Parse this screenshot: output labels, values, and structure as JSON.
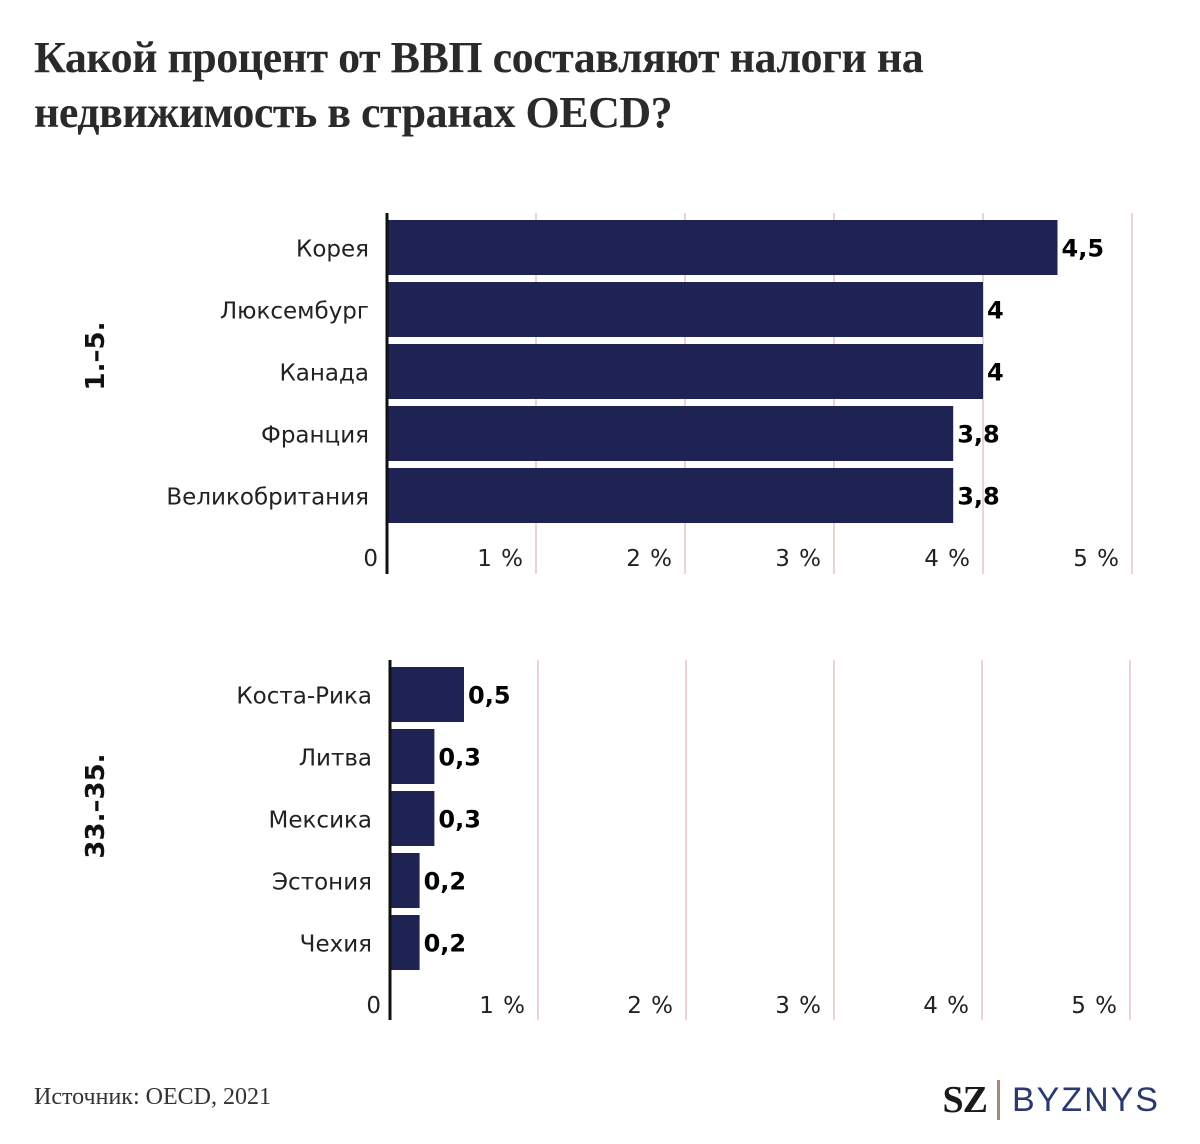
{
  "title": "Какой процент от ВВП составляют налоги на недвижимость в странах OECD?",
  "source": "Источник: OECD, 2021",
  "logo": {
    "sz": "SZ",
    "byznys": "BYZNYS"
  },
  "colors": {
    "bar": "#1e2353",
    "grid": "#e8c4c4",
    "axis": "#111111"
  },
  "chart_data": [
    {
      "type": "bar",
      "group_label": "1.–5.",
      "categories": [
        "Корея",
        "Люксембург",
        "Канада",
        "Франция",
        "Великобритания"
      ],
      "values": [
        4.5,
        4,
        4,
        3.8,
        3.8
      ],
      "value_labels": [
        "4,5",
        "4",
        "4",
        "3,8",
        "3,8"
      ],
      "xticks": [
        0,
        1,
        2,
        3,
        4,
        5
      ],
      "xtick_labels": [
        "0",
        "1 %",
        "2 %",
        "3 %",
        "4 %",
        "5 %"
      ],
      "xlim": [
        0,
        5
      ]
    },
    {
      "type": "bar",
      "group_label": "33.–35.",
      "categories": [
        "Коста-Рика",
        "Литва",
        "Мексика",
        "Эстония",
        "Чехия"
      ],
      "values": [
        0.5,
        0.3,
        0.3,
        0.2,
        0.2
      ],
      "value_labels": [
        "0,5",
        "0,3",
        "0,3",
        "0,2",
        "0,2"
      ],
      "xticks": [
        0,
        1,
        2,
        3,
        4,
        5
      ],
      "xtick_labels": [
        "0",
        "1 %",
        "2 %",
        "3 %",
        "4 %",
        "5 %"
      ],
      "xlim": [
        0,
        5
      ]
    }
  ]
}
